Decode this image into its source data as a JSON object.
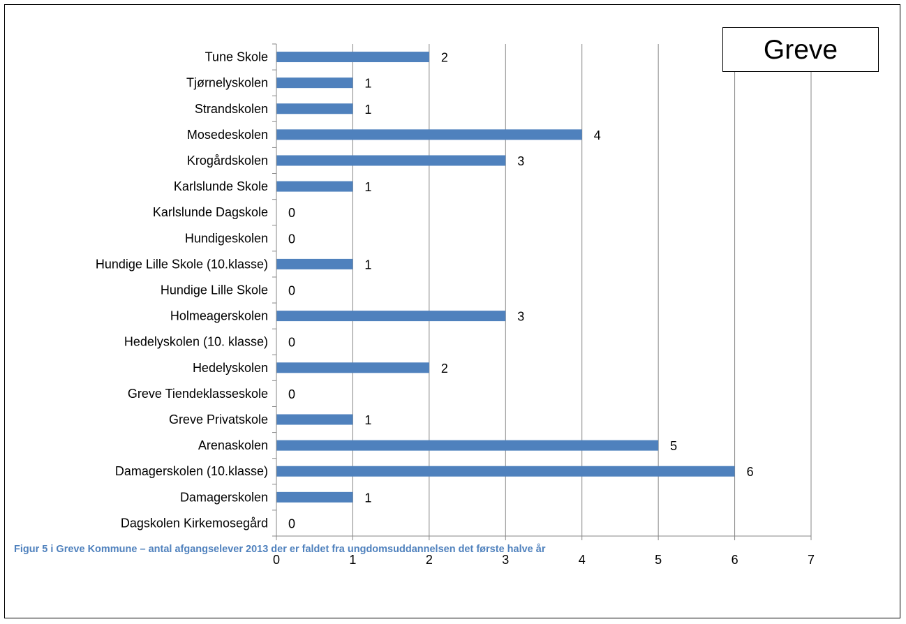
{
  "figure": {
    "caption": "Figur 5 i Greve Kommune – antal afgangselever 2013 der er faldet fra ungdomsuddannelsen det første halve år",
    "title_box": "Greve"
  },
  "chart_data": {
    "type": "bar",
    "orientation": "horizontal",
    "title": "Greve",
    "categories": [
      "Tune Skole",
      "Tjørnelyskolen",
      "Strandskolen",
      "Mosedeskolen",
      "Krogårdskolen",
      "Karlslunde Skole",
      "Karlslunde Dagskole",
      "Hundigeskolen",
      "Hundige Lille Skole (10.klasse)",
      "Hundige Lille Skole",
      "Holmeagerskolen",
      "Hedelyskolen (10. klasse)",
      "Hedelyskolen",
      "Greve Tiendeklasseskole",
      "Greve Privatskole",
      "Arenaskolen",
      "Damagerskolen (10.klasse)",
      "Damagerskolen",
      "Dagskolen Kirkemosegård"
    ],
    "values": [
      2,
      1,
      1,
      4,
      3,
      1,
      0,
      0,
      1,
      0,
      3,
      0,
      2,
      0,
      1,
      5,
      6,
      1,
      0
    ],
    "xlim": [
      0,
      7
    ],
    "x_ticks": [
      0,
      1,
      2,
      3,
      4,
      5,
      6,
      7
    ],
    "xlabel": "",
    "ylabel": "",
    "data_labels": true,
    "grid": "vertical",
    "legend": "none",
    "bar_color": "#4f81bd"
  }
}
